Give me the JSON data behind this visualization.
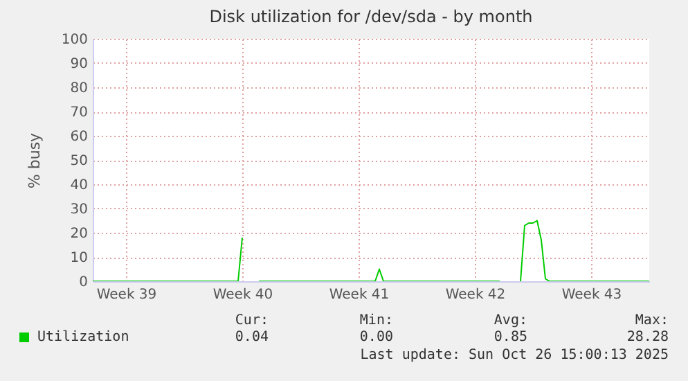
{
  "chart_data": {
    "type": "line",
    "title": "Disk utilization for /dev/sda - by month",
    "ylabel": "% busy",
    "categories": [
      null,
      null,
      null,
      null,
      null,
      null,
      null,
      null,
      "Week 39",
      null,
      null,
      null,
      null,
      null,
      null,
      null,
      null,
      null,
      null,
      null,
      null,
      null,
      null,
      null,
      null,
      null,
      null,
      null,
      null,
      null,
      null,
      null,
      null,
      null,
      null,
      null,
      "Week 40",
      null,
      null,
      null,
      null,
      null,
      null,
      null,
      null,
      null,
      null,
      null,
      null,
      null,
      null,
      null,
      null,
      null,
      null,
      null,
      null,
      null,
      null,
      null,
      null,
      null,
      null,
      null,
      "Week 41",
      null,
      null,
      null,
      null,
      null,
      null,
      null,
      null,
      null,
      null,
      null,
      null,
      null,
      null,
      null,
      null,
      null,
      null,
      null,
      null,
      null,
      null,
      null,
      null,
      null,
      null,
      null,
      "Week 42",
      null,
      null,
      null,
      null,
      null,
      null,
      null,
      null,
      null,
      null,
      null,
      null,
      null,
      null,
      null,
      null,
      null,
      null,
      null,
      null,
      null,
      null,
      null,
      null,
      null,
      null,
      null,
      "Week 43",
      null,
      null,
      null,
      null,
      null,
      null,
      null,
      null,
      null,
      null,
      null,
      null,
      null,
      null
    ],
    "series": [
      {
        "name": "Utilization",
        "color": "#00cc00",
        "values": [
          0,
          0,
          0,
          0,
          0,
          0,
          0,
          0,
          0,
          0,
          0,
          0,
          0,
          0,
          0,
          0,
          0,
          0,
          0,
          0,
          0,
          0,
          0,
          0,
          0,
          0,
          0,
          0,
          0,
          0,
          0,
          0,
          0,
          0,
          0,
          0,
          18,
          null,
          null,
          null,
          0,
          0,
          0,
          0,
          0,
          0,
          0,
          0,
          0,
          0,
          0,
          0,
          0,
          0,
          0,
          0,
          0,
          0,
          0,
          0,
          0,
          0,
          0,
          0,
          0,
          0,
          0,
          0,
          0,
          5,
          0,
          0,
          0,
          0,
          0,
          0,
          0,
          0,
          0,
          0,
          0,
          0,
          0,
          0,
          0,
          0,
          0,
          0,
          0,
          0,
          0,
          0,
          0,
          0,
          0,
          0,
          0,
          0,
          0,
          null,
          null,
          null,
          null,
          0,
          23,
          24,
          24,
          25,
          17,
          1,
          0,
          0,
          0,
          0,
          0,
          0,
          0,
          0,
          0,
          0,
          0,
          0,
          0,
          0,
          0,
          0,
          0,
          0,
          0,
          0,
          0,
          0,
          0,
          0,
          0
        ]
      }
    ],
    "ylim": [
      0,
      100
    ],
    "yticks": [
      0,
      10,
      20,
      30,
      40,
      50,
      60,
      70,
      80,
      90,
      100
    ],
    "grid": true,
    "legend": "bottom",
    "annotations": [
      "Cur: 0.04",
      "Min: 0.00",
      "Avg: 0.85",
      "Max: 28.28",
      "Last update: Sun Oct 26 15:00:13 2025"
    ]
  }
}
